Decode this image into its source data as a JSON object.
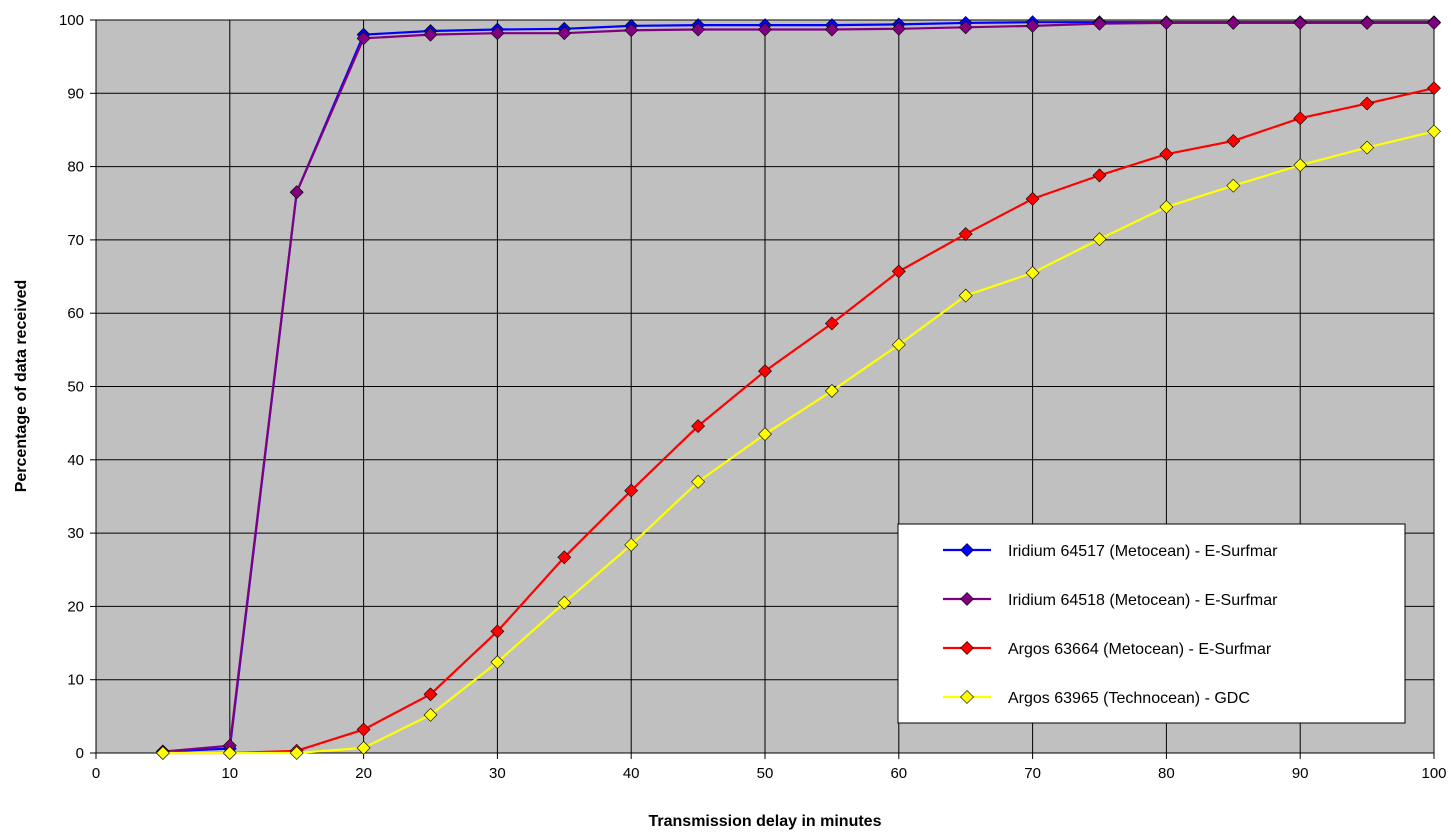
{
  "chart_data": {
    "type": "line",
    "xlabel": "Transmission delay in minutes",
    "ylabel": "Percentage of data received",
    "xlim": [
      0,
      100
    ],
    "ylim": [
      0,
      100
    ],
    "x_ticks": [
      0,
      10,
      20,
      30,
      40,
      50,
      60,
      70,
      80,
      90,
      100
    ],
    "y_ticks": [
      0,
      10,
      20,
      30,
      40,
      50,
      60,
      70,
      80,
      90,
      100
    ],
    "grid": true,
    "plot_background": "#c0c0c0",
    "legend_position": "bottom-right",
    "x": [
      5,
      10,
      15,
      20,
      25,
      30,
      35,
      40,
      45,
      50,
      55,
      60,
      65,
      70,
      75,
      80,
      85,
      90,
      95,
      100
    ],
    "series": [
      {
        "name": "Iridium 64517 (Metocean) - E-Surfmar",
        "color": "#0000ff",
        "values": [
          0.2,
          0.6,
          76.5,
          98.0,
          98.5,
          98.7,
          98.8,
          99.2,
          99.3,
          99.3,
          99.3,
          99.4,
          99.6,
          99.7,
          99.7,
          99.7,
          99.7,
          99.7,
          99.7,
          99.7
        ]
      },
      {
        "name": "Iridium 64518 (Metocean) - E-Surfmar",
        "color": "#800080",
        "values": [
          0.2,
          1.0,
          76.5,
          97.5,
          98.0,
          98.2,
          98.2,
          98.6,
          98.7,
          98.7,
          98.7,
          98.8,
          99.0,
          99.2,
          99.5,
          99.6,
          99.6,
          99.6,
          99.6,
          99.6
        ]
      },
      {
        "name": "Argos 63664 (Metocean) - E-Surfmar",
        "color": "#ff0000",
        "values": [
          0.0,
          0.0,
          0.3,
          3.2,
          8.0,
          16.6,
          26.7,
          35.8,
          44.6,
          52.1,
          58.6,
          65.7,
          70.8,
          75.6,
          78.8,
          81.7,
          83.5,
          86.6,
          88.6,
          90.7
        ]
      },
      {
        "name": "Argos 63965 (Technocean) - GDC",
        "color": "#ffff00",
        "values": [
          0.0,
          0.0,
          0.0,
          0.7,
          5.2,
          12.4,
          20.5,
          28.4,
          37.0,
          43.5,
          49.4,
          55.7,
          62.4,
          65.5,
          70.1,
          74.5,
          77.4,
          80.2,
          82.6,
          84.8
        ]
      }
    ]
  }
}
